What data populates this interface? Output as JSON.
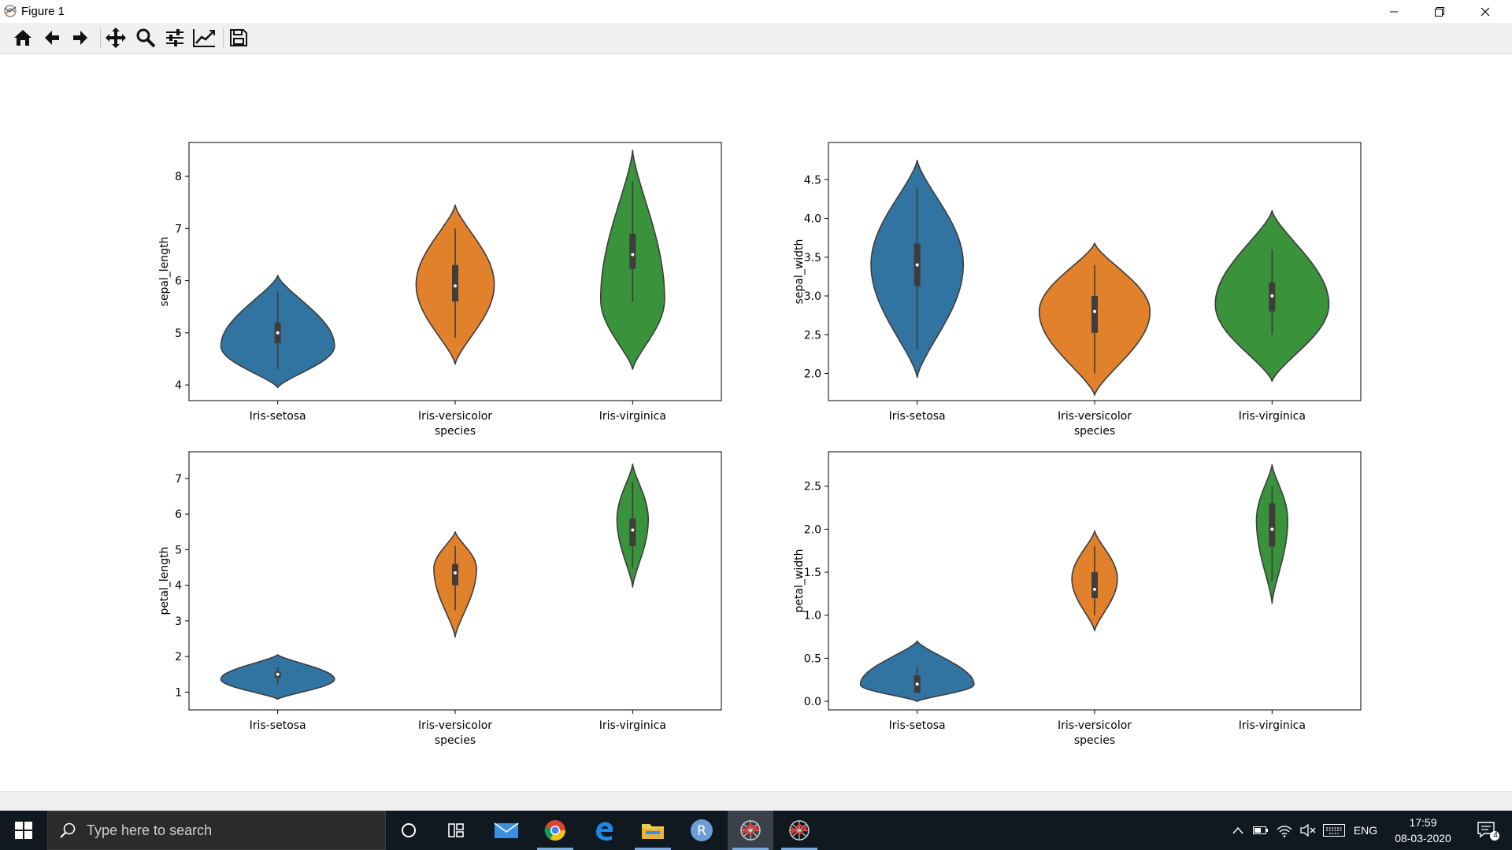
{
  "window": {
    "title": "Figure 1"
  },
  "toolbar": {
    "buttons": [
      "home-icon",
      "back-icon",
      "forward-icon",
      "pan-icon",
      "zoom-icon",
      "configure-subplots-icon",
      "edit-axis-icon",
      "save-icon"
    ]
  },
  "taskbar": {
    "search_placeholder": "Type here to search",
    "apps": [
      "cortana-icon",
      "task-view-icon",
      "mail-icon",
      "chrome-icon",
      "edge-icon",
      "file-explorer-icon",
      "r-icon",
      "figure-app-icon",
      "figure-app-icon-2"
    ],
    "language": "ENG",
    "time": "17:59",
    "date": "08-03-2020",
    "notification_count": "4"
  },
  "colors": {
    "setosa": "#3274a1",
    "versicolor": "#e1812c",
    "virginica": "#3a923a",
    "edge": "#3d3d3d"
  },
  "chart_data": [
    {
      "type": "violin",
      "xlabel": "species",
      "ylabel": "sepal_length",
      "categories": [
        "Iris-setosa",
        "Iris-versicolor",
        "Iris-virginica"
      ],
      "ylim": [
        3.7,
        8.65
      ],
      "yticks": [
        4,
        5,
        6,
        7,
        8
      ],
      "ytick_labels": [
        "4",
        "5",
        "6",
        "7",
        "8"
      ],
      "ranges": [
        [
          3.95,
          6.1
        ],
        [
          4.4,
          7.45
        ],
        [
          4.3,
          8.5
        ]
      ],
      "widths": [
        0.8,
        0.55,
        0.45
      ],
      "modes": [
        0.37,
        0.5,
        0.32
      ],
      "quartiles": [
        [
          4.8,
          5.0,
          5.2
        ],
        [
          5.6,
          5.9,
          6.3
        ],
        [
          6.225,
          6.5,
          6.9
        ]
      ],
      "whiskers": [
        [
          4.3,
          5.8
        ],
        [
          4.9,
          7.0
        ],
        [
          5.6,
          7.9
        ]
      ]
    },
    {
      "type": "violin",
      "xlabel": "species",
      "ylabel": "sepal_width",
      "categories": [
        "Iris-setosa",
        "Iris-versicolor",
        "Iris-virginica"
      ],
      "ylim": [
        1.65,
        4.98
      ],
      "yticks": [
        2.0,
        2.5,
        3.0,
        3.5,
        4.0,
        4.5
      ],
      "ytick_labels": [
        "2.0",
        "2.5",
        "3.0",
        "3.5",
        "4.0",
        "4.5"
      ],
      "ranges": [
        [
          1.95,
          4.75
        ],
        [
          1.72,
          3.68
        ],
        [
          1.9,
          4.1
        ]
      ],
      "widths": [
        0.65,
        0.78,
        0.8
      ],
      "modes": [
        0.52,
        0.55,
        0.45
      ],
      "quartiles": [
        [
          3.125,
          3.4,
          3.675
        ],
        [
          2.525,
          2.8,
          3.0
        ],
        [
          2.8,
          3.0,
          3.175
        ]
      ],
      "whiskers": [
        [
          2.3,
          4.4
        ],
        [
          2.0,
          3.4
        ],
        [
          2.5,
          3.6
        ]
      ]
    },
    {
      "type": "violin",
      "xlabel": "species",
      "ylabel": "petal_length",
      "categories": [
        "Iris-setosa",
        "Iris-versicolor",
        "Iris-virginica"
      ],
      "ylim": [
        0.5,
        7.75
      ],
      "yticks": [
        1,
        2,
        3,
        4,
        5,
        6,
        7
      ],
      "ytick_labels": [
        "1",
        "2",
        "3",
        "4",
        "5",
        "6",
        "7"
      ],
      "ranges": [
        [
          0.8,
          2.05
        ],
        [
          2.55,
          5.5
        ],
        [
          3.95,
          7.4
        ]
      ],
      "widths": [
        0.8,
        0.3,
        0.22
      ],
      "modes": [
        0.45,
        0.65,
        0.55
      ],
      "quartiles": [
        [
          1.4,
          1.5,
          1.575
        ],
        [
          4.0,
          4.35,
          4.6
        ],
        [
          5.1,
          5.55,
          5.875
        ]
      ],
      "whiskers": [
        [
          1.2,
          1.7
        ],
        [
          3.3,
          5.1
        ],
        [
          4.5,
          6.9
        ]
      ]
    },
    {
      "type": "violin",
      "xlabel": "species",
      "ylabel": "petal_width",
      "categories": [
        "Iris-setosa",
        "Iris-versicolor",
        "Iris-virginica"
      ],
      "ylim": [
        -0.1,
        2.9
      ],
      "yticks": [
        0.0,
        0.5,
        1.0,
        1.5,
        2.0,
        2.5
      ],
      "ytick_labels": [
        "0.0",
        "0.5",
        "1.0",
        "1.5",
        "2.0",
        "2.5"
      ],
      "ranges": [
        [
          0.0,
          0.7
        ],
        [
          0.82,
          1.98
        ],
        [
          1.14,
          2.75
        ]
      ],
      "widths": [
        0.8,
        0.32,
        0.22
      ],
      "modes": [
        0.28,
        0.52,
        0.6
      ],
      "quartiles": [
        [
          0.1,
          0.2,
          0.3
        ],
        [
          1.2,
          1.3,
          1.5
        ],
        [
          1.8,
          2.0,
          2.3
        ]
      ],
      "whiskers": [
        [
          0.1,
          0.4
        ],
        [
          1.0,
          1.8
        ],
        [
          1.4,
          2.5
        ]
      ]
    }
  ]
}
